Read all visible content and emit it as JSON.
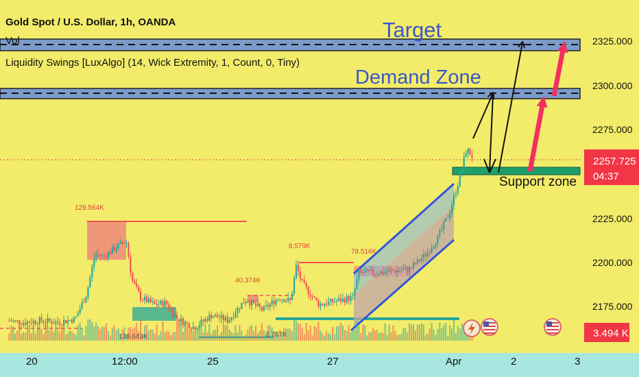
{
  "header": {
    "symbol_line": "Gold Spot / U.S. Dollar, 1h, OANDA",
    "vol_label": "Vol",
    "indicator_label": "Liquidity Swings [LuxAlgo] (14, Wick Extremity, 1, Count, 0, Tiny)"
  },
  "annotations": {
    "target": "Target",
    "demand_zone": "Demand Zone",
    "support_zone": "Support zone"
  },
  "liquidity_labels": [
    "129.564K",
    "138.643K",
    "40.374K",
    "3.787K",
    "8.579K",
    "78.516K"
  ],
  "price_axis": {
    "ticks": [
      "2325.000",
      "2300.000",
      "2275.000",
      "2225.000",
      "2200.000",
      "2175.000"
    ],
    "current_price": "2257.725",
    "countdown": "04:37",
    "volume_value": "3.494 K"
  },
  "time_axis": {
    "ticks": [
      "20",
      "12:00",
      "25",
      "27",
      "Apr",
      "2",
      "3"
    ]
  },
  "colors": {
    "background": "#f2ec6a",
    "up_candle": "#26a69a",
    "down_candle": "#ef5350",
    "zone_fill": "#7b9bc9",
    "support_fill": "#1f9f6d",
    "channel_line": "#2f55d8",
    "arrow_red": "#f0305e",
    "axis_bg": "#a8e6e0"
  },
  "chart_data": {
    "type": "candlestick",
    "title": "Gold Spot / U.S. Dollar, 1h, OANDA",
    "ylim": [
      2155,
      2333
    ],
    "x_labels": [
      "20",
      "12:00",
      "25",
      "27",
      "Apr",
      "2",
      "3"
    ],
    "price_path": [
      [
        0,
        2167
      ],
      [
        0.03,
        2166
      ],
      [
        0.06,
        2167
      ],
      [
        0.09,
        2166
      ],
      [
        0.12,
        2168
      ],
      [
        0.14,
        2182
      ],
      [
        0.155,
        2205
      ],
      [
        0.17,
        2203
      ],
      [
        0.19,
        2208
      ],
      [
        0.21,
        2212
      ],
      [
        0.22,
        2190
      ],
      [
        0.235,
        2180
      ],
      [
        0.26,
        2176
      ],
      [
        0.28,
        2177
      ],
      [
        0.3,
        2168
      ],
      [
        0.33,
        2163
      ],
      [
        0.36,
        2170
      ],
      [
        0.39,
        2167
      ],
      [
        0.42,
        2179
      ],
      [
        0.45,
        2173
      ],
      [
        0.48,
        2180
      ],
      [
        0.5,
        2178
      ],
      [
        0.51,
        2198
      ],
      [
        0.52,
        2188
      ],
      [
        0.55,
        2176
      ],
      [
        0.58,
        2178
      ],
      [
        0.61,
        2180
      ],
      [
        0.62,
        2194
      ],
      [
        0.65,
        2194
      ],
      [
        0.68,
        2195
      ],
      [
        0.71,
        2196
      ],
      [
        0.74,
        2205
      ],
      [
        0.76,
        2214
      ],
      [
        0.78,
        2228
      ],
      [
        0.8,
        2250
      ],
      [
        0.81,
        2264
      ],
      [
        0.82,
        2260
      ]
    ],
    "levels": {
      "target_zone": [
        2320,
        2326
      ],
      "demand_zone": [
        2293,
        2298
      ],
      "support_zone": [
        2252,
        2256
      ],
      "current_price": 2257.725
    },
    "projections": [
      {
        "from": 2262,
        "to": 2296
      },
      {
        "from": 2296,
        "to": 2254
      },
      {
        "from": 2254,
        "to": 2324
      },
      {
        "from": 2254,
        "to": 2296
      },
      {
        "from": 2296,
        "to": 2326
      }
    ]
  }
}
